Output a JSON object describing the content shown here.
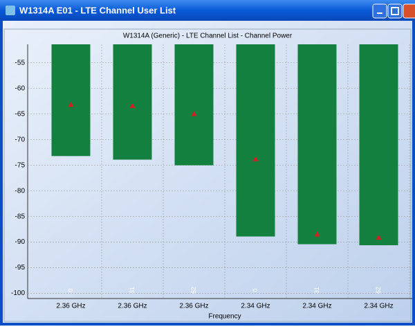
{
  "window": {
    "title": "W1314A E01 - LTE Channel User List"
  },
  "chart_data": {
    "type": "bar",
    "title": "W1314A (Generic) - LTE Channel List - Channel Power",
    "x_label": "Frequency",
    "categories": [
      "2.36 GHz",
      "2.36 GHz",
      "2.36 GHz",
      "2.34 GHz",
      "2.34 GHz",
      "2.34 GHz"
    ],
    "bar_labels": [
      "0",
      "31",
      "62",
      "0",
      "31",
      "62"
    ],
    "series": [
      {
        "kind": "bar",
        "color": "#138040",
        "values": [
          -73.2,
          -73.9,
          -75,
          -88.9,
          -90.4,
          -90.6
        ]
      },
      {
        "kind": "triangle",
        "color": "#d42020",
        "values": [
          -63.2,
          -63.4,
          -65,
          -73.8,
          -88.5,
          -89.1
        ]
      }
    ],
    "ylim": [
      -101,
      -51.4
    ],
    "yticks": [
      -55,
      -60,
      -65,
      -70,
      -75,
      -80,
      -85,
      -90,
      -95,
      -100
    ],
    "grid": true
  }
}
